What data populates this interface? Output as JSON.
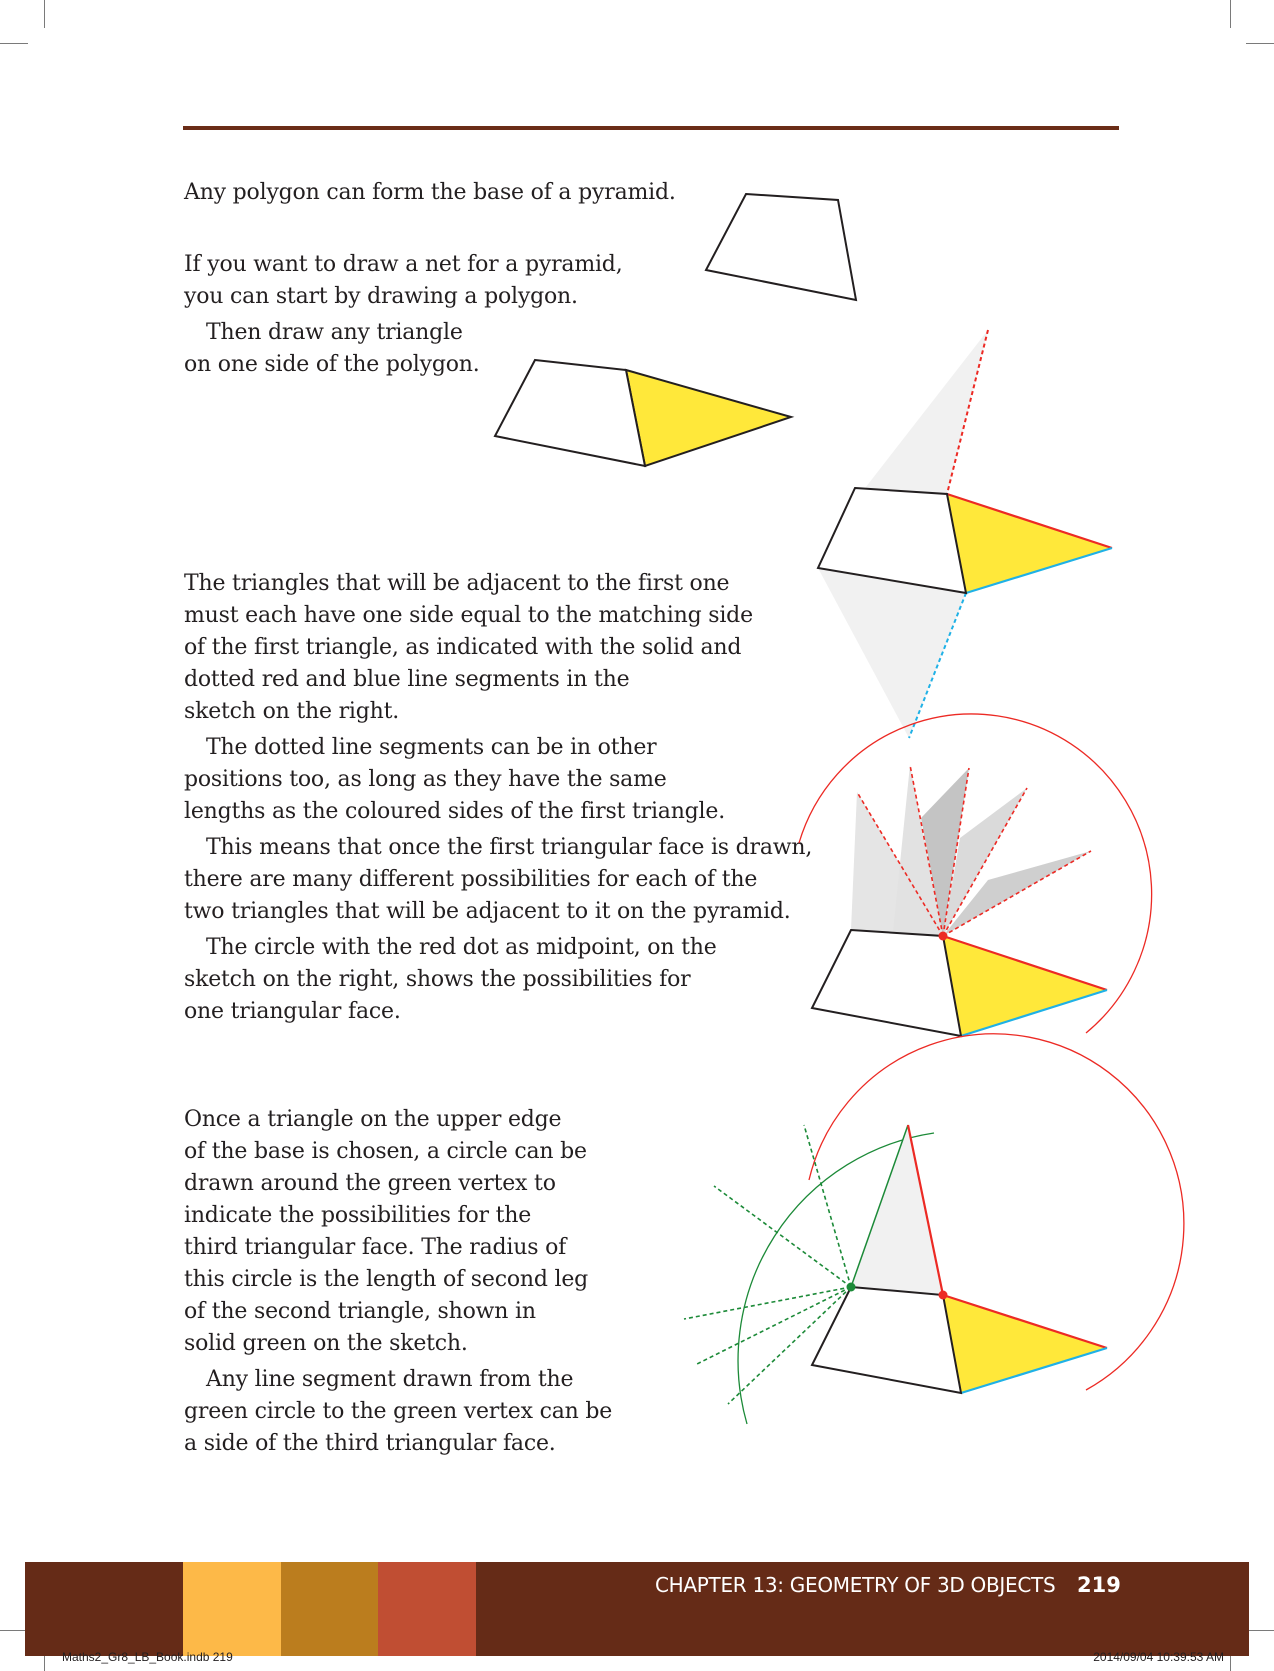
{
  "intro": {
    "line1": "Any polygon can form the base of a pyramid.",
    "line2a": "If you want to draw a net for a pyramid,",
    "line2b": "you can start by drawing a polygon.",
    "line3a": "Then draw any triangle",
    "line3b": "on one side of the polygon."
  },
  "adjacent": {
    "p1": [
      "The triangles that will be adjacent to the first one",
      "must each have one side equal to the matching side",
      "of the first triangle, as indicated with the solid and",
      "dotted red and blue line segments in the",
      "sketch on the right."
    ],
    "p2": [
      "The dotted line segments can be in other",
      "positions too, as long as they have the same",
      "lengths as the coloured sides of the first triangle."
    ],
    "p3": [
      "This means that once the first triangular face is drawn,",
      "there are many different possibilities for each of the",
      "two triangles that will be adjacent to it on the pyramid."
    ],
    "p4": [
      "The circle with the red dot as midpoint, on the",
      "sketch on the right, shows the possibilities for",
      "one triangular face."
    ]
  },
  "third": {
    "p1": [
      "Once a triangle on the upper edge",
      "of the base is chosen, a circle can be",
      "drawn around the green vertex to",
      "indicate the possibilities for the",
      "third triangular face. The radius of",
      "this circle is the length of second leg",
      "of the second triangle, shown in",
      "solid green on the sketch."
    ],
    "p2": [
      "Any line segment drawn from the",
      "green circle to the green vertex can be",
      "a side of the third triangular face."
    ]
  },
  "footer": {
    "chapter": "CHAPTER 13: GEOMETRY OF 3D OBJECTS",
    "page_number": "219",
    "swatches": [
      "#fdb948",
      "#bb7d1e",
      "#c04e33"
    ],
    "band_color": "#652b17"
  },
  "slug": {
    "file": "Maths2_Gr8_LB_Book.indb   219",
    "stamp": "2014/09/04   10:39:53 AM"
  },
  "colors": {
    "face_yellow": "#ffe83a",
    "edge_red": "#ec2a24",
    "edge_blue": "#1fb1e6",
    "circle_green": "#1c8a38",
    "rule": "#6b2d17"
  }
}
